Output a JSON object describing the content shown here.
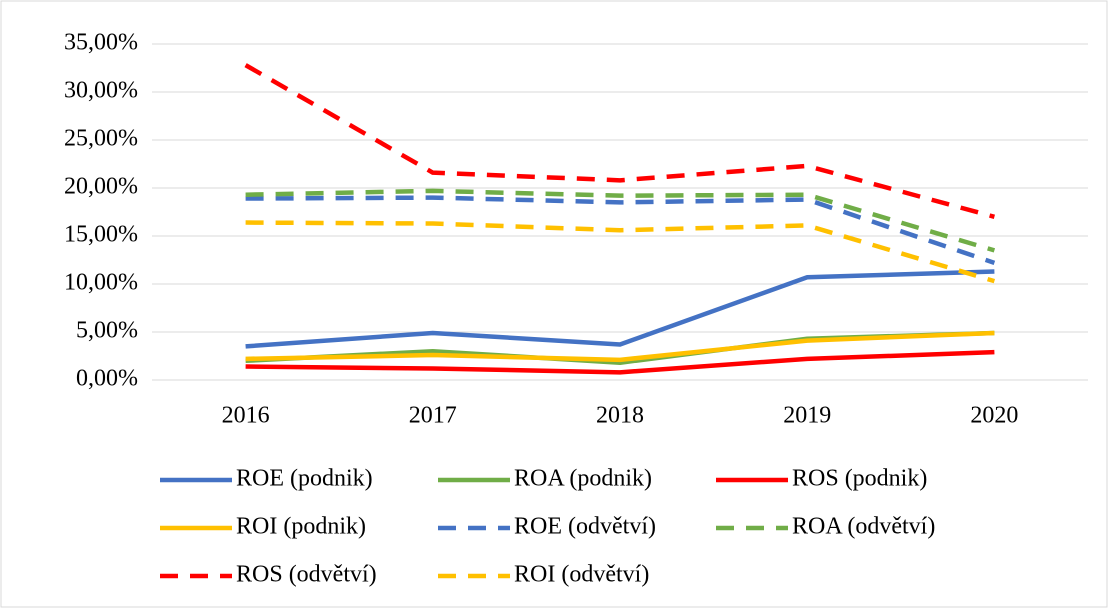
{
  "chart_data": {
    "type": "line",
    "categories": [
      "2016",
      "2017",
      "2018",
      "2019",
      "2020"
    ],
    "series": [
      {
        "name": "ROE (podnik)",
        "color": "#4472c4",
        "dashed": false,
        "values": [
          3.5,
          4.9,
          3.7,
          10.7,
          11.3
        ]
      },
      {
        "name": "ROA (podnik)",
        "color": "#70ad47",
        "dashed": false,
        "values": [
          2.0,
          3.0,
          1.8,
          4.3,
          4.9
        ]
      },
      {
        "name": "ROS (podnik)",
        "color": "#ff0000",
        "dashed": false,
        "values": [
          1.4,
          1.2,
          0.8,
          2.2,
          2.9
        ]
      },
      {
        "name": "ROI (podnik)",
        "color": "#ffc000",
        "dashed": false,
        "values": [
          2.2,
          2.6,
          2.1,
          4.1,
          4.9
        ]
      },
      {
        "name": "ROE (odvětví)",
        "color": "#4472c4",
        "dashed": true,
        "values": [
          18.9,
          19.0,
          18.5,
          18.8,
          12.2
        ]
      },
      {
        "name": "ROA (odvětví)",
        "color": "#70ad47",
        "dashed": true,
        "values": [
          19.3,
          19.7,
          19.2,
          19.3,
          13.5
        ]
      },
      {
        "name": "ROS (odvětví)",
        "color": "#ff0000",
        "dashed": true,
        "values": [
          32.8,
          21.6,
          20.8,
          22.3,
          17.0
        ]
      },
      {
        "name": "ROI (odvětví)",
        "color": "#ffc000",
        "dashed": true,
        "values": [
          16.4,
          16.3,
          15.6,
          16.1,
          10.3
        ]
      }
    ],
    "ylim": [
      0,
      35
    ],
    "yticks": [
      {
        "value": 0,
        "label": "0,00%"
      },
      {
        "value": 5,
        "label": "5,00%"
      },
      {
        "value": 10,
        "label": "10,00%"
      },
      {
        "value": 15,
        "label": "15,00%"
      },
      {
        "value": 20,
        "label": "20,00%"
      },
      {
        "value": 25,
        "label": "25,00%"
      },
      {
        "value": 30,
        "label": "30,00%"
      },
      {
        "value": 35,
        "label": "35,00%"
      }
    ],
    "grid": true,
    "legend": "bottom"
  }
}
